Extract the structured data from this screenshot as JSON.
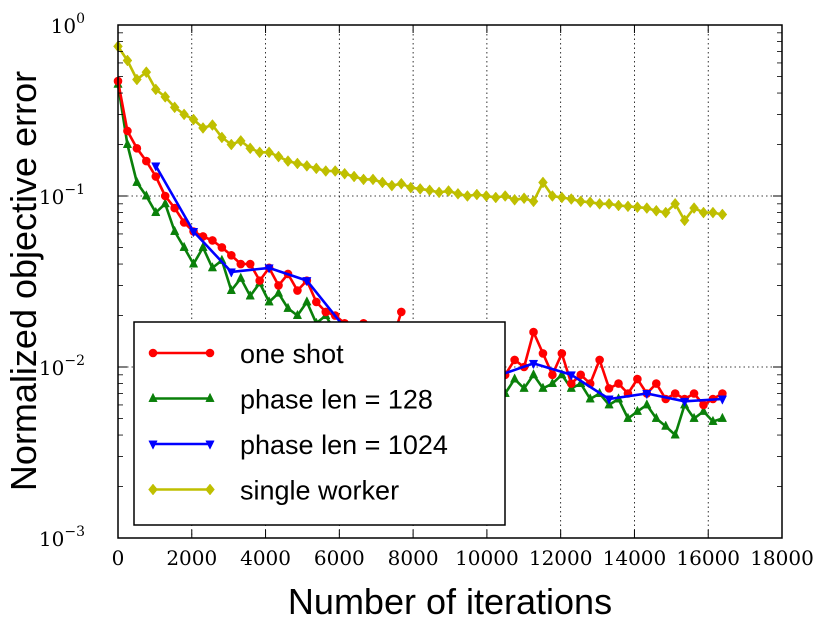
{
  "chart_data": {
    "type": "line",
    "title": "",
    "xlabel": "Number of iterations",
    "ylabel": "Normalized objective error",
    "xlim": [
      0,
      18000
    ],
    "ylim": [
      0.001,
      1
    ],
    "yscale": "log",
    "grid": true,
    "legend_position": "lower-left",
    "x_ticks": [
      0,
      2000,
      4000,
      6000,
      8000,
      10000,
      12000,
      14000,
      16000,
      18000
    ],
    "x_tick_labels": [
      "0",
      "2000",
      "4000",
      "6000",
      "8000",
      "10000",
      "12000",
      "14000",
      "16000",
      "18000"
    ],
    "y_ticks": [
      {
        "value": 0.001,
        "base": "10",
        "exp": "−3"
      },
      {
        "value": 0.01,
        "base": "10",
        "exp": "−2"
      },
      {
        "value": 0.1,
        "base": "10",
        "exp": "−1"
      },
      {
        "value": 1,
        "base": "10",
        "exp": "0"
      }
    ],
    "series": [
      {
        "name": "one shot",
        "color": "#ff0000",
        "marker": "circle",
        "x": [
          0,
          256,
          512,
          768,
          1024,
          1280,
          1536,
          1792,
          2048,
          2304,
          2560,
          2816,
          3072,
          3328,
          3584,
          3840,
          4096,
          4352,
          4608,
          4864,
          5120,
          5376,
          5632,
          5888,
          6144,
          6400,
          6656,
          6912,
          7168,
          7424,
          7680,
          10240,
          10496,
          10752,
          11008,
          11264,
          11520,
          11776,
          12032,
          12288,
          12544,
          12800,
          13056,
          13312,
          13568,
          13824,
          14080,
          14336,
          14592,
          14848,
          15104,
          15360,
          15616,
          15872,
          16128,
          16384
        ],
        "y": [
          0.47,
          0.24,
          0.19,
          0.16,
          0.13,
          0.1,
          0.085,
          0.07,
          0.062,
          0.058,
          0.055,
          0.05,
          0.045,
          0.04,
          0.04,
          0.032,
          0.038,
          0.03,
          0.035,
          0.028,
          0.032,
          0.024,
          0.021,
          0.02,
          0.018,
          0.016,
          0.018,
          0.015,
          0.017,
          0.014,
          0.021,
          0.012,
          0.009,
          0.011,
          0.01,
          0.016,
          0.012,
          0.009,
          0.012,
          0.008,
          0.009,
          0.008,
          0.011,
          0.0075,
          0.008,
          0.007,
          0.0085,
          0.007,
          0.008,
          0.0065,
          0.007,
          0.0065,
          0.007,
          0.006,
          0.0065,
          0.007
        ]
      },
      {
        "name": "phase len = 128",
        "color": "#0a800a",
        "marker": "triangle-up",
        "x": [
          0,
          256,
          512,
          768,
          1024,
          1280,
          1536,
          1792,
          2048,
          2304,
          2560,
          2816,
          3072,
          3328,
          3584,
          3840,
          4096,
          4352,
          4608,
          4864,
          5120,
          5376,
          5632,
          5888,
          6144,
          10240,
          10496,
          10752,
          11008,
          11264,
          11520,
          11776,
          12032,
          12288,
          12544,
          12800,
          13056,
          13312,
          13568,
          13824,
          14080,
          14336,
          14592,
          14848,
          15104,
          15360,
          15616,
          15872,
          16128,
          16384
        ],
        "y": [
          0.45,
          0.2,
          0.12,
          0.1,
          0.08,
          0.09,
          0.062,
          0.05,
          0.04,
          0.05,
          0.038,
          0.042,
          0.028,
          0.033,
          0.026,
          0.031,
          0.024,
          0.027,
          0.022,
          0.02,
          0.024,
          0.018,
          0.02,
          0.016,
          0.017,
          0.009,
          0.007,
          0.0085,
          0.0075,
          0.009,
          0.0075,
          0.008,
          0.009,
          0.0075,
          0.008,
          0.0065,
          0.007,
          0.006,
          0.0065,
          0.005,
          0.0055,
          0.006,
          0.005,
          0.0045,
          0.004,
          0.006,
          0.005,
          0.0055,
          0.0048,
          0.005
        ]
      },
      {
        "name": "phase len = 1024",
        "color": "#0000ff",
        "marker": "triangle-down",
        "x": [
          1024,
          2048,
          3072,
          4096,
          5120,
          6144,
          10240,
          11264,
          12288,
          13312,
          14336,
          15360,
          16384
        ],
        "y": [
          0.15,
          0.062,
          0.036,
          0.038,
          0.032,
          0.017,
          0.0088,
          0.0105,
          0.009,
          0.0065,
          0.007,
          0.0063,
          0.0065
        ]
      },
      {
        "name": "single worker",
        "color": "#bfbf00",
        "marker": "diamond",
        "x": [
          0,
          256,
          512,
          768,
          1024,
          1280,
          1536,
          1792,
          2048,
          2304,
          2560,
          2816,
          3072,
          3328,
          3584,
          3840,
          4096,
          4352,
          4608,
          4864,
          5120,
          5376,
          5632,
          5888,
          6144,
          6400,
          6656,
          6912,
          7168,
          7424,
          7680,
          7936,
          8192,
          8448,
          8704,
          8960,
          9216,
          9472,
          9728,
          9984,
          10240,
          10496,
          10752,
          11008,
          11264,
          11520,
          11776,
          12032,
          12288,
          12544,
          12800,
          13056,
          13312,
          13568,
          13824,
          14080,
          14336,
          14592,
          14848,
          15104,
          15360,
          15616,
          15872,
          16128,
          16384
        ],
        "y": [
          0.75,
          0.62,
          0.48,
          0.53,
          0.42,
          0.38,
          0.33,
          0.3,
          0.28,
          0.25,
          0.26,
          0.22,
          0.2,
          0.21,
          0.19,
          0.18,
          0.18,
          0.17,
          0.16,
          0.155,
          0.15,
          0.145,
          0.14,
          0.14,
          0.135,
          0.13,
          0.125,
          0.125,
          0.12,
          0.115,
          0.118,
          0.112,
          0.11,
          0.108,
          0.105,
          0.107,
          0.103,
          0.1,
          0.102,
          0.1,
          0.098,
          0.1,
          0.095,
          0.097,
          0.093,
          0.12,
          0.1,
          0.098,
          0.096,
          0.093,
          0.092,
          0.09,
          0.09,
          0.088,
          0.087,
          0.086,
          0.085,
          0.082,
          0.08,
          0.09,
          0.072,
          0.085,
          0.08,
          0.08,
          0.078
        ]
      }
    ]
  }
}
